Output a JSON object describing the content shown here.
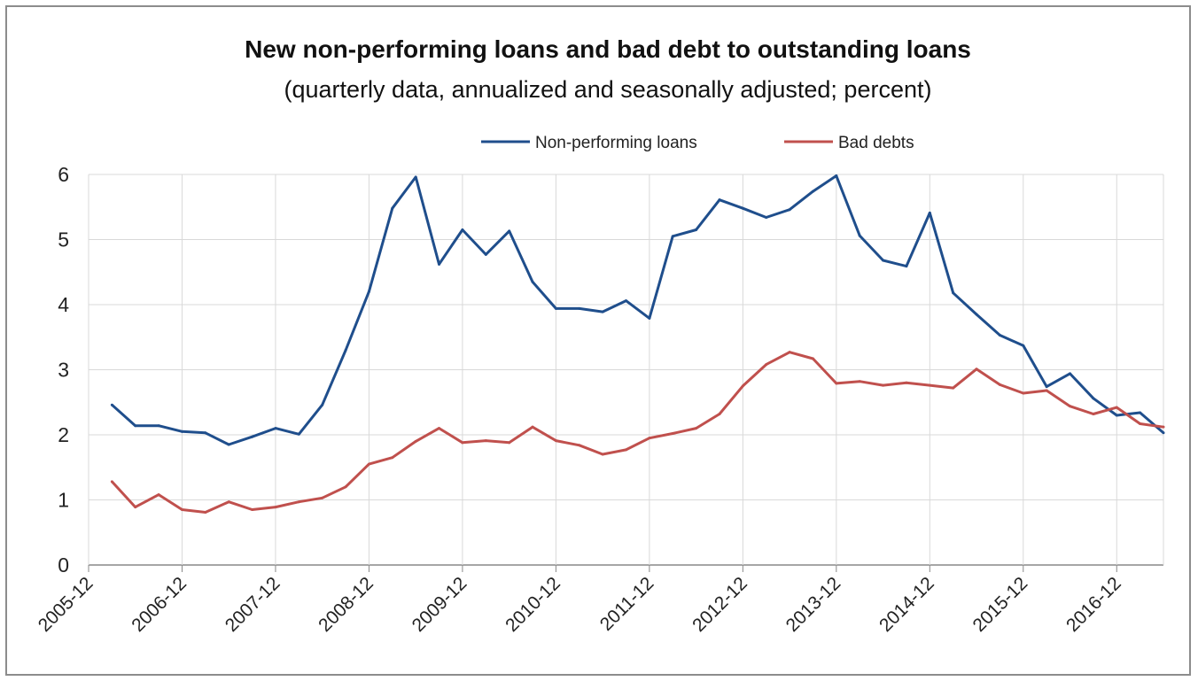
{
  "chart_data": {
    "type": "line",
    "title": "New non-performing loans and bad debt to outstanding loans",
    "subtitle": "(quarterly data, annualized and seasonally adjusted; percent)",
    "xlabel": "",
    "ylabel": "",
    "ylim": [
      0,
      6
    ],
    "yticks": [
      "0",
      "1",
      "2",
      "3",
      "4",
      "5",
      "6"
    ],
    "xticks": [
      "2005-12",
      "2006-12",
      "2007-12",
      "2008-12",
      "2009-12",
      "2010-12",
      "2011-12",
      "2012-12",
      "2013-12",
      "2014-12",
      "2015-12",
      "2016-12"
    ],
    "grid": true,
    "legend_position": "top-right",
    "x": [
      "2006-03",
      "2006-06",
      "2006-09",
      "2006-12",
      "2007-03",
      "2007-06",
      "2007-09",
      "2007-12",
      "2008-03",
      "2008-06",
      "2008-09",
      "2008-12",
      "2009-03",
      "2009-06",
      "2009-09",
      "2009-12",
      "2010-03",
      "2010-06",
      "2010-09",
      "2010-12",
      "2011-03",
      "2011-06",
      "2011-09",
      "2011-12",
      "2012-03",
      "2012-06",
      "2012-09",
      "2012-12",
      "2013-03",
      "2013-06",
      "2013-09",
      "2013-12",
      "2014-03",
      "2014-06",
      "2014-09",
      "2014-12",
      "2015-03",
      "2015-06",
      "2015-09",
      "2015-12",
      "2016-03",
      "2016-06",
      "2016-09",
      "2016-12",
      "2017-03",
      "2017-06"
    ],
    "series": [
      {
        "name": "Non-performing loans",
        "color": "#1f4e8c",
        "values": [
          2.46,
          2.14,
          2.14,
          2.05,
          2.03,
          1.85,
          1.97,
          2.1,
          2.01,
          2.46,
          3.3,
          4.2,
          5.48,
          5.96,
          4.62,
          5.15,
          4.77,
          5.13,
          4.35,
          3.94,
          3.94,
          3.89,
          4.06,
          3.79,
          5.05,
          5.15,
          5.61,
          5.48,
          5.34,
          5.46,
          5.74,
          5.98,
          5.06,
          4.68,
          4.59,
          5.41,
          4.18,
          3.85,
          3.53,
          3.37,
          2.74,
          2.94,
          2.56,
          2.3,
          2.34,
          2.03
        ]
      },
      {
        "name": "Bad debts",
        "color": "#c0504d",
        "values": [
          1.28,
          0.89,
          1.08,
          0.85,
          0.81,
          0.97,
          0.85,
          0.89,
          0.97,
          1.03,
          1.2,
          1.55,
          1.65,
          1.9,
          2.1,
          1.88,
          1.91,
          1.88,
          2.12,
          1.91,
          1.84,
          1.7,
          1.77,
          1.95,
          2.02,
          2.1,
          2.32,
          2.75,
          3.08,
          3.27,
          3.17,
          2.79,
          2.82,
          2.76,
          2.8,
          2.76,
          2.72,
          3.01,
          2.77,
          2.64,
          2.68,
          2.44,
          2.32,
          2.42,
          2.17,
          2.12
        ]
      }
    ]
  }
}
